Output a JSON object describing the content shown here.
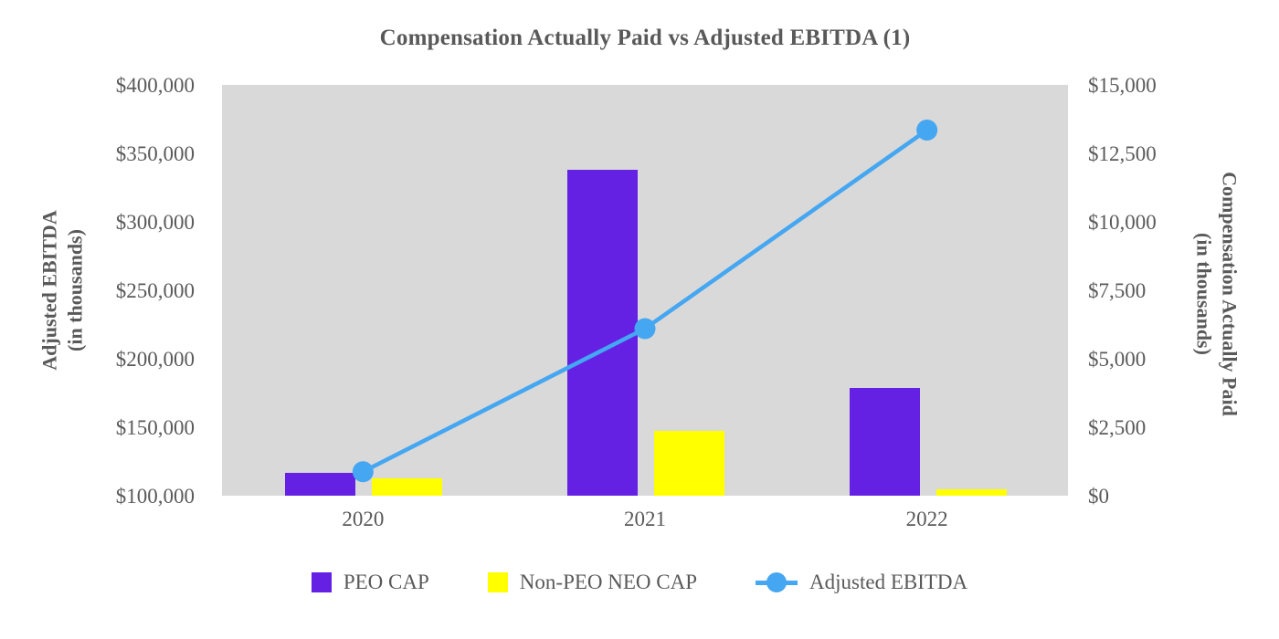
{
  "chart": {
    "title": "Compensation Actually Paid vs Adjusted EBITDA (1)"
  },
  "chart_data": {
    "type": "bar+line combo",
    "title": "Compensation Actually Paid vs Adjusted EBITDA (1)",
    "categories": [
      "2020",
      "2021",
      "2022"
    ],
    "series": [
      {
        "name": "PEO CAP",
        "type": "bar",
        "axis": "right",
        "color": "#6421E4",
        "values": [
          830,
          11900,
          3930
        ]
      },
      {
        "name": "Non-PEO NEO CAP",
        "type": "bar",
        "axis": "right",
        "color": "#FFFF00",
        "values": [
          630,
          2370,
          230
        ]
      },
      {
        "name": "Adjusted EBITDA",
        "type": "line",
        "axis": "left",
        "color": "#45A6F1",
        "values": [
          117500,
          222000,
          367000
        ]
      }
    ],
    "left_axis": {
      "title_lines": [
        "Adjusted EBITDA",
        "(in thousands)"
      ],
      "min": 100000,
      "max": 400000,
      "tick_step": 50000,
      "ticks_top_to_bottom": [
        "$400,000",
        "$350,000",
        "$300,000",
        "$250,000",
        "$200,000",
        "$150,000",
        "$100,000"
      ]
    },
    "right_axis": {
      "title_lines": [
        "Compensation Actually Paid",
        "(in thousands)"
      ],
      "min": 0,
      "max": 15000,
      "tick_step": 2500,
      "ticks_top_to_bottom": [
        "$15,000",
        "$12,500",
        "$10,000",
        "$7,500",
        "$5,000",
        "$2,500",
        "$0"
      ]
    },
    "legend_position": "bottom",
    "grid": false,
    "plot_bg_color": "#D9D9D9",
    "text_color": "#595959",
    "legend": [
      {
        "label": "PEO CAP",
        "swatch": "square",
        "color": "#6421E4"
      },
      {
        "label": "Non-PEO NEO CAP",
        "swatch": "square",
        "color": "#FFFF00"
      },
      {
        "label": "Adjusted EBITDA",
        "swatch": "line-marker",
        "color": "#45A6F1"
      }
    ]
  }
}
